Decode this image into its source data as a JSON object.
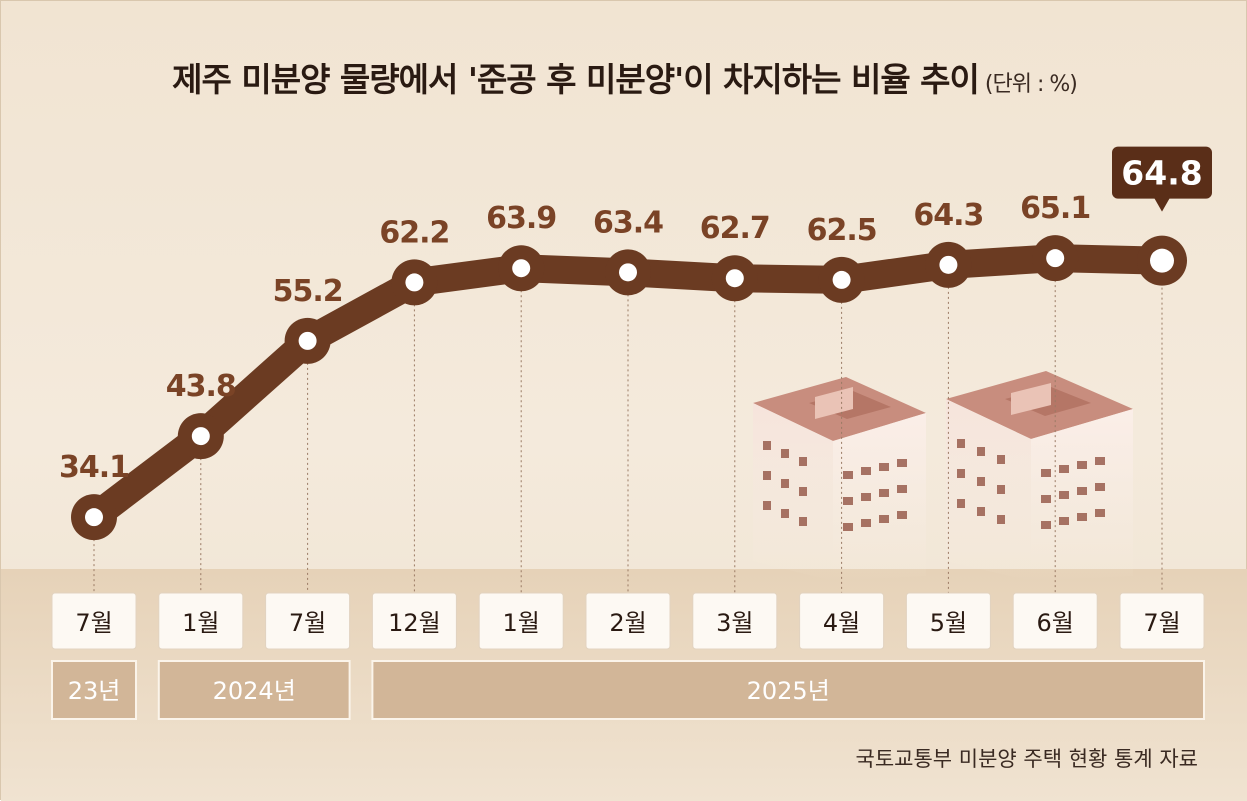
{
  "title": "제주 미분양 물량에서 '준공 후 미분양'이 차지하는 비율 추이",
  "unit": "(단위 : %)",
  "source": "국토교통부 미분양 주택 현황 통계 자료",
  "colors": {
    "line": "#6b3b22",
    "highlight": "#5a2e18",
    "year_band": "#d2b698",
    "month_box": "#fdf9f3"
  },
  "chart_data": {
    "type": "line",
    "title": "제주 미분양 물량에서 '준공 후 미분양'이 차지하는 비율 추이",
    "unit": "%",
    "categories": [
      "7월",
      "1월",
      "7월",
      "12월",
      "1월",
      "2월",
      "3월",
      "4월",
      "5월",
      "6월",
      "7월"
    ],
    "year_groups": [
      {
        "label": "23년",
        "span": 1
      },
      {
        "label": "2024년",
        "span": 2
      },
      {
        "label": "2025년",
        "span": 8
      }
    ],
    "series": [
      {
        "values": [
          34.1,
          43.8,
          55.2,
          62.2,
          63.9,
          63.4,
          62.7,
          62.5,
          64.3,
          65.1,
          64.8
        ]
      }
    ],
    "highlight_index": 10,
    "grid": false
  }
}
